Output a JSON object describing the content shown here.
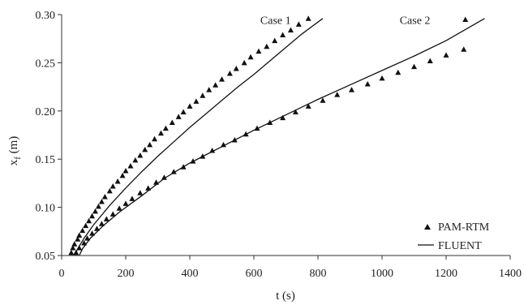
{
  "chart_data": {
    "type": "scatter",
    "title": "",
    "xlabel": "t (s)",
    "ylabel_main": "x",
    "ylabel_sub": "f",
    "ylabel_unit": " (m)",
    "xlim": [
      0,
      1400
    ],
    "ylim": [
      0.05,
      0.3
    ],
    "x_ticks": [
      0,
      200,
      400,
      600,
      800,
      1000,
      1200,
      1400
    ],
    "y_ticks": [
      0.05,
      0.1,
      0.15,
      0.2,
      0.25,
      0.3
    ],
    "y_tick_labels": [
      "0.05",
      "0.10",
      "0.15",
      "0.20",
      "0.25",
      "0.30"
    ],
    "x_tick_labels": [
      "0",
      "200",
      "400",
      "600",
      "800",
      "1000",
      "1200",
      "1400"
    ],
    "grid": false,
    "legend_position": "bottom-right",
    "colors": {
      "marker": "#111111",
      "line": "#111111",
      "axis": "#333333"
    },
    "annotations": [
      {
        "text": "Case 1",
        "x": 620,
        "y": 0.293
      },
      {
        "text": "Case 2",
        "x": 1055,
        "y": 0.293
      }
    ],
    "series": [
      {
        "name": "PAM-RTM",
        "kind": "markers",
        "marker": "triangle",
        "case": "Case 1",
        "points": [
          [
            30,
            0.053
          ],
          [
            35,
            0.058
          ],
          [
            40,
            0.062
          ],
          [
            50,
            0.067
          ],
          [
            55,
            0.071
          ],
          [
            65,
            0.076
          ],
          [
            75,
            0.081
          ],
          [
            85,
            0.086
          ],
          [
            95,
            0.091
          ],
          [
            105,
            0.096
          ],
          [
            115,
            0.101
          ],
          [
            125,
            0.106
          ],
          [
            135,
            0.111
          ],
          [
            150,
            0.117
          ],
          [
            160,
            0.122
          ],
          [
            175,
            0.127
          ],
          [
            190,
            0.133
          ],
          [
            200,
            0.138
          ],
          [
            215,
            0.143
          ],
          [
            230,
            0.149
          ],
          [
            245,
            0.154
          ],
          [
            260,
            0.16
          ],
          [
            275,
            0.165
          ],
          [
            290,
            0.171
          ],
          [
            310,
            0.177
          ],
          [
            325,
            0.182
          ],
          [
            345,
            0.188
          ],
          [
            365,
            0.194
          ],
          [
            380,
            0.199
          ],
          [
            400,
            0.205
          ],
          [
            420,
            0.21
          ],
          [
            440,
            0.216
          ],
          [
            460,
            0.222
          ],
          [
            480,
            0.227
          ],
          [
            500,
            0.233
          ],
          [
            525,
            0.239
          ],
          [
            545,
            0.244
          ],
          [
            570,
            0.25
          ],
          [
            590,
            0.256
          ],
          [
            615,
            0.262
          ],
          [
            640,
            0.267
          ],
          [
            665,
            0.273
          ],
          [
            690,
            0.279
          ],
          [
            715,
            0.284
          ],
          [
            740,
            0.29
          ],
          [
            770,
            0.296
          ]
        ]
      },
      {
        "name": "PAM-RTM",
        "kind": "markers",
        "marker": "triangle",
        "case": "Case 2",
        "points": [
          [
            45,
            0.053
          ],
          [
            55,
            0.058
          ],
          [
            70,
            0.063
          ],
          [
            80,
            0.068
          ],
          [
            95,
            0.073
          ],
          [
            110,
            0.078
          ],
          [
            125,
            0.083
          ],
          [
            140,
            0.088
          ],
          [
            160,
            0.093
          ],
          [
            180,
            0.099
          ],
          [
            200,
            0.104
          ],
          [
            220,
            0.109
          ],
          [
            245,
            0.115
          ],
          [
            270,
            0.12
          ],
          [
            295,
            0.126
          ],
          [
            320,
            0.131
          ],
          [
            350,
            0.137
          ],
          [
            380,
            0.142
          ],
          [
            410,
            0.148
          ],
          [
            440,
            0.153
          ],
          [
            470,
            0.159
          ],
          [
            505,
            0.165
          ],
          [
            540,
            0.17
          ],
          [
            575,
            0.176
          ],
          [
            610,
            0.182
          ],
          [
            650,
            0.188
          ],
          [
            690,
            0.193
          ],
          [
            730,
            0.199
          ],
          [
            770,
            0.205
          ],
          [
            815,
            0.211
          ],
          [
            860,
            0.217
          ],
          [
            905,
            0.222
          ],
          [
            955,
            0.228
          ],
          [
            1000,
            0.234
          ],
          [
            1050,
            0.24
          ],
          [
            1100,
            0.246
          ],
          [
            1150,
            0.252
          ],
          [
            1200,
            0.258
          ],
          [
            1255,
            0.264
          ],
          [
            1260,
            0.295
          ]
        ]
      },
      {
        "name": "FLUENT",
        "kind": "line",
        "case": "Case 1",
        "points": [
          [
            40,
            0.05
          ],
          [
            50,
            0.057
          ],
          [
            70,
            0.068
          ],
          [
            100,
            0.082
          ],
          [
            150,
            0.102
          ],
          [
            200,
            0.12
          ],
          [
            250,
            0.137
          ],
          [
            300,
            0.153
          ],
          [
            350,
            0.168
          ],
          [
            400,
            0.183
          ],
          [
            450,
            0.197
          ],
          [
            500,
            0.211
          ],
          [
            550,
            0.225
          ],
          [
            600,
            0.238
          ],
          [
            650,
            0.252
          ],
          [
            700,
            0.266
          ],
          [
            750,
            0.28
          ],
          [
            815,
            0.296
          ]
        ]
      },
      {
        "name": "FLUENT",
        "kind": "line",
        "case": "Case 2",
        "points": [
          [
            55,
            0.05
          ],
          [
            65,
            0.057
          ],
          [
            90,
            0.068
          ],
          [
            130,
            0.081
          ],
          [
            180,
            0.095
          ],
          [
            250,
            0.112
          ],
          [
            320,
            0.13
          ],
          [
            400,
            0.146
          ],
          [
            500,
            0.163
          ],
          [
            600,
            0.18
          ],
          [
            700,
            0.196
          ],
          [
            800,
            0.212
          ],
          [
            900,
            0.227
          ],
          [
            1000,
            0.242
          ],
          [
            1100,
            0.257
          ],
          [
            1200,
            0.273
          ],
          [
            1320,
            0.296
          ]
        ]
      }
    ]
  }
}
